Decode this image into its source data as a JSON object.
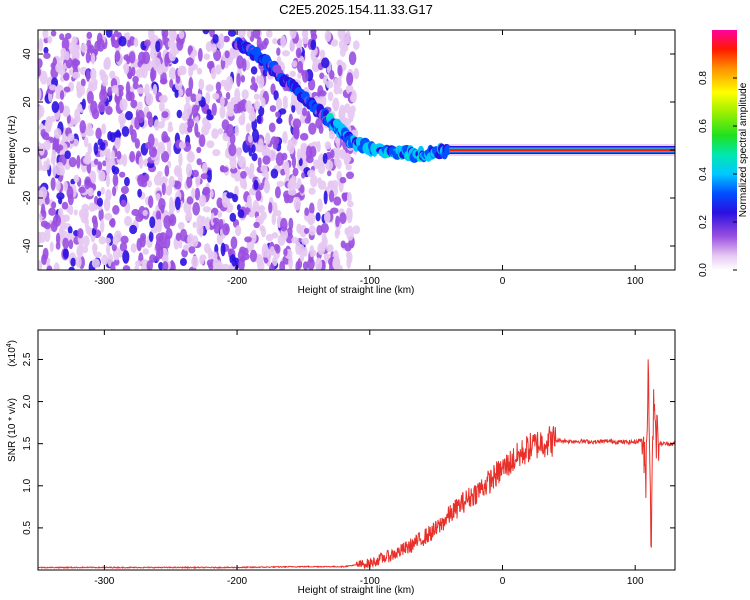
{
  "title": "C2E5.2025.154.11.33.G17",
  "colors": {
    "snr_line": "#e8302a",
    "axis": "#000000",
    "background": "#ffffff"
  },
  "chart_data": [
    {
      "type": "heatmap",
      "xlabel": "Height of straight line (km)",
      "ylabel": "Frequency (Hz)",
      "xlim": [
        -350,
        130
      ],
      "ylim": [
        -50,
        50
      ],
      "xticks": [
        -300,
        -200,
        -100,
        0,
        100
      ],
      "yticks": [
        -40,
        -20,
        0,
        20,
        40
      ],
      "colorbar": {
        "label": "Normalized spectral amplitude",
        "range": [
          0,
          1
        ],
        "ticks": [
          0.0,
          0.2,
          0.4,
          0.6,
          0.8
        ],
        "tick_labels": [
          "0.0",
          "0.2",
          "0.4",
          "0.6",
          "0.8"
        ],
        "colormap": "rainbow (violet to red)"
      },
      "features": [
        {
          "name": "noise-region",
          "x_range": [
            -350,
            -110
          ],
          "freq_range": [
            -50,
            50
          ]
        },
        {
          "name": "descending-trace",
          "points": [
            [
              -200,
              45
            ],
            [
              -180,
              38
            ],
            [
              -160,
              27
            ],
            [
              -140,
              17
            ],
            [
              -125,
              10
            ],
            [
              -115,
              4
            ],
            [
              -100,
              1
            ],
            [
              -80,
              -1
            ],
            [
              -60,
              -2
            ],
            [
              -40,
              0
            ]
          ]
        },
        {
          "name": "flat-signal",
          "x_range": [
            -40,
            130
          ],
          "freq": 0
        }
      ]
    },
    {
      "type": "line",
      "xlabel": "Height of straight line (km)",
      "ylabel": "SNR (10 * v/v)",
      "y_multiplier": "(x10^4)",
      "y_multiplier_base": "(x10",
      "y_multiplier_exp": "4",
      "y_multiplier_close": ")",
      "xlim": [
        -350,
        130
      ],
      "ylim": [
        0,
        2.85
      ],
      "xticks": [
        -300,
        -200,
        -100,
        0,
        100
      ],
      "yticks": [
        0.5,
        1.0,
        1.5,
        2.0,
        2.5
      ],
      "ytick_labels": [
        "0.5",
        "1.0",
        "1.5",
        "2.0",
        "2.5"
      ],
      "series": [
        {
          "x": [
            -350,
            -300,
            -250,
            -200,
            -150,
            -120,
            -100,
            -90,
            -80,
            -70,
            -60,
            -50,
            -40,
            -30,
            -20,
            -10,
            0,
            10,
            20,
            30,
            40,
            50,
            60,
            70,
            80,
            90,
            100,
            105,
            108,
            110,
            112,
            114,
            116,
            118,
            120,
            130
          ],
          "y": [
            0.03,
            0.03,
            0.03,
            0.03,
            0.04,
            0.04,
            0.08,
            0.14,
            0.2,
            0.28,
            0.38,
            0.48,
            0.65,
            0.8,
            0.92,
            1.05,
            1.2,
            1.33,
            1.45,
            1.52,
            1.54,
            1.53,
            1.53,
            1.52,
            1.53,
            1.52,
            1.52,
            1.55,
            1.1,
            2.5,
            0.3,
            2.2,
            1.6,
            1.5,
            1.5,
            1.5
          ]
        }
      ]
    }
  ]
}
